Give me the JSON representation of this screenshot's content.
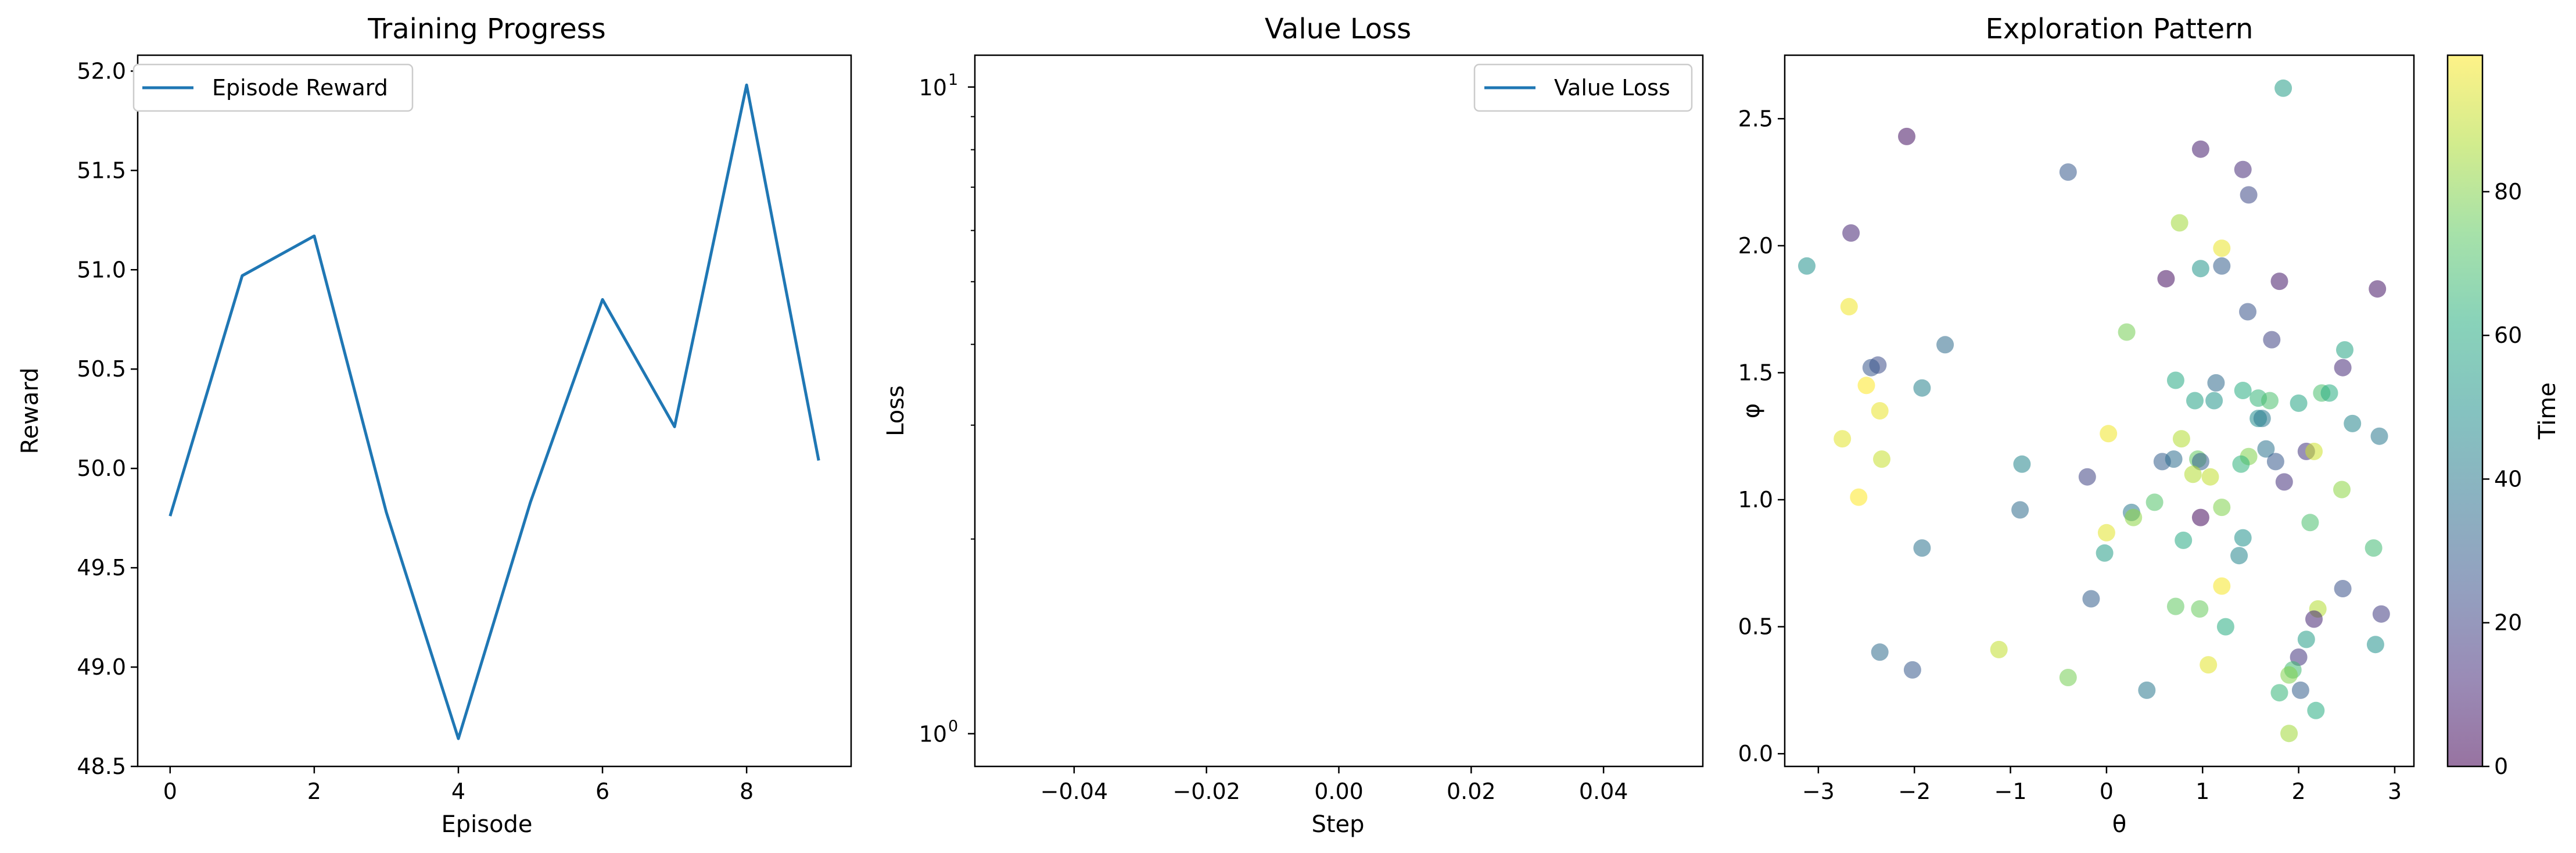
{
  "chart_data": [
    {
      "type": "line",
      "title": "Training Progress",
      "xlabel": "Episode",
      "ylabel": "Reward",
      "xlim": [
        -0.45,
        9.45
      ],
      "ylim": [
        48.5,
        52.08
      ],
      "xticks": [
        0,
        2,
        4,
        6,
        8
      ],
      "xtick_labels": [
        "0",
        "2",
        "4",
        "6",
        "8"
      ],
      "yticks": [
        48.5,
        49.0,
        49.5,
        50.0,
        50.5,
        51.0,
        51.5,
        52.0
      ],
      "ytick_labels": [
        "48.5",
        "49.0",
        "49.5",
        "50.0",
        "50.5",
        "51.0",
        "51.5",
        "52.0"
      ],
      "legend_position": "upper-left",
      "grid": false,
      "series": [
        {
          "name": "Episode Reward",
          "color": "#1f77b4",
          "x": [
            0,
            1,
            2,
            3,
            4,
            5,
            6,
            7,
            8,
            9
          ],
          "values": [
            49.76,
            50.97,
            51.17,
            49.78,
            48.64,
            49.83,
            50.85,
            50.21,
            51.93,
            50.04
          ]
        }
      ]
    },
    {
      "type": "line",
      "title": "Value Loss",
      "xlabel": "Step",
      "ylabel": "Loss",
      "y_scale": "log",
      "xlim": [
        -0.055,
        0.055
      ],
      "ylim": [
        0.89,
        11.2
      ],
      "xticks": [
        -0.04,
        -0.02,
        0.0,
        0.02,
        0.04
      ],
      "xtick_labels": [
        "−0.04",
        "−0.02",
        "0.00",
        "0.02",
        "0.04"
      ],
      "ytick_major": [
        {
          "value": 1,
          "base": "10",
          "exp": "0"
        },
        {
          "value": 10,
          "base": "10",
          "exp": "1"
        }
      ],
      "legend_position": "upper-right",
      "grid": false,
      "series": [
        {
          "name": "Value Loss",
          "color": "#1f77b4",
          "x": [],
          "values": []
        }
      ]
    },
    {
      "type": "scatter",
      "title": "Exploration Pattern",
      "xlabel": "θ",
      "ylabel": "φ",
      "xlim": [
        -3.35,
        3.2
      ],
      "ylim": [
        -0.05,
        2.75
      ],
      "xticks": [
        -3,
        -2,
        -1,
        0,
        1,
        2,
        3
      ],
      "xtick_labels": [
        "−3",
        "−2",
        "−1",
        "0",
        "1",
        "2",
        "3"
      ],
      "yticks": [
        0.0,
        0.5,
        1.0,
        1.5,
        2.0,
        2.5
      ],
      "ytick_labels": [
        "0.0",
        "0.5",
        "1.0",
        "1.5",
        "2.0",
        "2.5"
      ],
      "colormap": "viridis",
      "point_alpha": 0.55,
      "colorbar": {
        "label": "Time",
        "range": [
          0,
          99
        ],
        "ticks": [
          0,
          20,
          40,
          60,
          80
        ],
        "tick_labels": [
          "0",
          "20",
          "40",
          "60",
          "80"
        ]
      },
      "points": [
        {
          "x": -2.08,
          "y": 2.43,
          "t": 5
        },
        {
          "x": -2.66,
          "y": 2.05,
          "t": 10
        },
        {
          "x": 0.98,
          "y": 2.38,
          "t": 8
        },
        {
          "x": 1.42,
          "y": 2.3,
          "t": 12
        },
        {
          "x": 1.48,
          "y": 2.2,
          "t": 22
        },
        {
          "x": 1.84,
          "y": 2.62,
          "t": 55
        },
        {
          "x": -0.4,
          "y": 2.29,
          "t": 28
        },
        {
          "x": 2.82,
          "y": 1.83,
          "t": 6
        },
        {
          "x": 1.8,
          "y": 1.86,
          "t": 7
        },
        {
          "x": 0.62,
          "y": 1.87,
          "t": 4
        },
        {
          "x": 1.2,
          "y": 1.92,
          "t": 30
        },
        {
          "x": 0.98,
          "y": 1.91,
          "t": 52
        },
        {
          "x": 1.2,
          "y": 1.99,
          "t": 96
        },
        {
          "x": 0.76,
          "y": 2.09,
          "t": 85
        },
        {
          "x": -3.12,
          "y": 1.92,
          "t": 50
        },
        {
          "x": -2.68,
          "y": 1.76,
          "t": 97
        },
        {
          "x": 0.21,
          "y": 1.66,
          "t": 78
        },
        {
          "x": -1.68,
          "y": 1.61,
          "t": 35
        },
        {
          "x": 1.47,
          "y": 1.74,
          "t": 26
        },
        {
          "x": 1.72,
          "y": 1.63,
          "t": 20
        },
        {
          "x": -2.38,
          "y": 1.53,
          "t": 23
        },
        {
          "x": -2.45,
          "y": 1.52,
          "t": 27
        },
        {
          "x": 2.48,
          "y": 1.59,
          "t": 58
        },
        {
          "x": 2.46,
          "y": 1.52,
          "t": 12
        },
        {
          "x": -2.5,
          "y": 1.45,
          "t": 99
        },
        {
          "x": -1.92,
          "y": 1.44,
          "t": 44
        },
        {
          "x": 0.72,
          "y": 1.47,
          "t": 60
        },
        {
          "x": 1.14,
          "y": 1.46,
          "t": 34
        },
        {
          "x": 1.42,
          "y": 1.43,
          "t": 62
        },
        {
          "x": 2.24,
          "y": 1.42,
          "t": 70
        },
        {
          "x": 2.32,
          "y": 1.42,
          "t": 62
        },
        {
          "x": 0.92,
          "y": 1.39,
          "t": 57
        },
        {
          "x": 1.12,
          "y": 1.39,
          "t": 52
        },
        {
          "x": 1.58,
          "y": 1.4,
          "t": 65
        },
        {
          "x": 1.7,
          "y": 1.39,
          "t": 70
        },
        {
          "x": 2.0,
          "y": 1.38,
          "t": 58
        },
        {
          "x": -2.36,
          "y": 1.35,
          "t": 96
        },
        {
          "x": 1.58,
          "y": 1.32,
          "t": 48
        },
        {
          "x": 1.62,
          "y": 1.32,
          "t": 40
        },
        {
          "x": 2.56,
          "y": 1.3,
          "t": 45
        },
        {
          "x": 0.02,
          "y": 1.26,
          "t": 97
        },
        {
          "x": -2.75,
          "y": 1.24,
          "t": 95
        },
        {
          "x": 0.78,
          "y": 1.24,
          "t": 88
        },
        {
          "x": 2.84,
          "y": 1.25,
          "t": 40
        },
        {
          "x": 1.66,
          "y": 1.2,
          "t": 38
        },
        {
          "x": 2.08,
          "y": 1.19,
          "t": 15
        },
        {
          "x": 2.16,
          "y": 1.19,
          "t": 92
        },
        {
          "x": -2.34,
          "y": 1.16,
          "t": 91
        },
        {
          "x": 0.58,
          "y": 1.15,
          "t": 30
        },
        {
          "x": 0.7,
          "y": 1.16,
          "t": 36
        },
        {
          "x": 0.95,
          "y": 1.16,
          "t": 75
        },
        {
          "x": 0.98,
          "y": 1.15,
          "t": 30
        },
        {
          "x": 1.76,
          "y": 1.15,
          "t": 28
        },
        {
          "x": 1.48,
          "y": 1.17,
          "t": 80
        },
        {
          "x": 1.4,
          "y": 1.14,
          "t": 64
        },
        {
          "x": -0.88,
          "y": 1.14,
          "t": 45
        },
        {
          "x": 0.9,
          "y": 1.1,
          "t": 88
        },
        {
          "x": 1.08,
          "y": 1.09,
          "t": 90
        },
        {
          "x": 1.85,
          "y": 1.07,
          "t": 14
        },
        {
          "x": -0.2,
          "y": 1.09,
          "t": 20
        },
        {
          "x": 2.45,
          "y": 1.04,
          "t": 82
        },
        {
          "x": -2.58,
          "y": 1.01,
          "t": 99
        },
        {
          "x": 0.5,
          "y": 0.99,
          "t": 72
        },
        {
          "x": 1.2,
          "y": 0.97,
          "t": 80
        },
        {
          "x": -0.9,
          "y": 0.96,
          "t": 35
        },
        {
          "x": 0.26,
          "y": 0.95,
          "t": 40
        },
        {
          "x": 0.28,
          "y": 0.93,
          "t": 82
        },
        {
          "x": 0.98,
          "y": 0.93,
          "t": 3
        },
        {
          "x": 2.12,
          "y": 0.91,
          "t": 70
        },
        {
          "x": 0.0,
          "y": 0.87,
          "t": 95
        },
        {
          "x": 0.8,
          "y": 0.84,
          "t": 60
        },
        {
          "x": 1.42,
          "y": 0.85,
          "t": 50
        },
        {
          "x": -1.92,
          "y": 0.81,
          "t": 38
        },
        {
          "x": 2.78,
          "y": 0.81,
          "t": 68
        },
        {
          "x": -0.02,
          "y": 0.79,
          "t": 55
        },
        {
          "x": 1.38,
          "y": 0.78,
          "t": 45
        },
        {
          "x": 1.2,
          "y": 0.66,
          "t": 98
        },
        {
          "x": 2.46,
          "y": 0.65,
          "t": 25
        },
        {
          "x": -0.16,
          "y": 0.61,
          "t": 30
        },
        {
          "x": 0.72,
          "y": 0.58,
          "t": 75
        },
        {
          "x": 0.97,
          "y": 0.57,
          "t": 76
        },
        {
          "x": 2.2,
          "y": 0.57,
          "t": 88
        },
        {
          "x": 2.86,
          "y": 0.55,
          "t": 18
        },
        {
          "x": 2.16,
          "y": 0.53,
          "t": 10
        },
        {
          "x": 1.24,
          "y": 0.5,
          "t": 62
        },
        {
          "x": 2.08,
          "y": 0.45,
          "t": 55
        },
        {
          "x": 2.8,
          "y": 0.43,
          "t": 50
        },
        {
          "x": -1.12,
          "y": 0.41,
          "t": 90
        },
        {
          "x": -2.36,
          "y": 0.4,
          "t": 35
        },
        {
          "x": 2.0,
          "y": 0.38,
          "t": 15
        },
        {
          "x": 1.94,
          "y": 0.33,
          "t": 68
        },
        {
          "x": 1.06,
          "y": 0.35,
          "t": 95
        },
        {
          "x": -2.02,
          "y": 0.33,
          "t": 28
        },
        {
          "x": 1.9,
          "y": 0.31,
          "t": 80
        },
        {
          "x": -0.4,
          "y": 0.3,
          "t": 78
        },
        {
          "x": 0.42,
          "y": 0.25,
          "t": 40
        },
        {
          "x": 2.02,
          "y": 0.25,
          "t": 30
        },
        {
          "x": 1.8,
          "y": 0.24,
          "t": 65
        },
        {
          "x": 2.18,
          "y": 0.17,
          "t": 62
        },
        {
          "x": 1.9,
          "y": 0.08,
          "t": 85
        }
      ]
    }
  ]
}
